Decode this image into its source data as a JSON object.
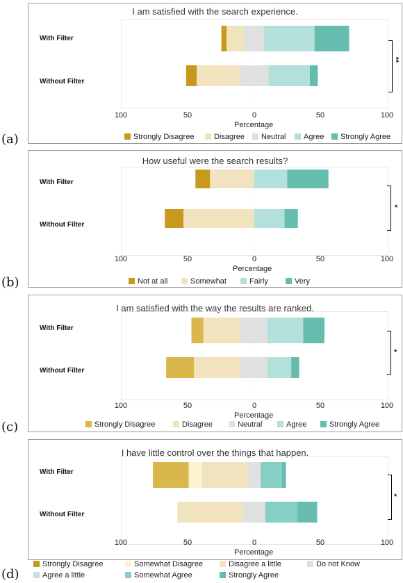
{
  "colors": {
    "strong_neg": "#c79a1d",
    "strong_neg_d": "#d9b74a",
    "neg": "#f1e3bd",
    "neutral": "#e0e0e0",
    "pos": "#b3e0da",
    "strong_pos": "#67bcb0",
    "somewhat_dis": "#fdf3d2",
    "agree_little": "#c7dfe8",
    "somewhat_agree": "#86cfc5"
  },
  "chart_data": [
    {
      "type": "bar",
      "label": "(a)",
      "title": "I am satisfied with the search experience.",
      "xlabel": "Percentage",
      "xlim": [
        -100,
        100
      ],
      "tick_labels": [
        "100",
        "50",
        "0",
        "50",
        "100"
      ],
      "categories": [
        "With Filter",
        "Without Filter"
      ],
      "significance": "**",
      "legend": [
        "Strongly Disagree",
        "Disagree",
        "Neutral",
        "Agree",
        "Strongly Agree"
      ],
      "series": [
        {
          "name": "Strongly Disagree",
          "values": [
            4,
            8
          ]
        },
        {
          "name": "Disagree",
          "values": [
            13,
            32
          ]
        },
        {
          "name": "Neutral",
          "values": [
            15,
            22
          ]
        },
        {
          "name": "Agree",
          "values": [
            38,
            31
          ]
        },
        {
          "name": "Strongly Agree",
          "values": [
            26,
            6
          ]
        }
      ]
    },
    {
      "type": "bar",
      "label": "(b)",
      "title": "How useful were the search results?",
      "xlabel": "Percentage",
      "xlim": [
        -100,
        100
      ],
      "tick_labels": [
        "100",
        "50",
        "0",
        "50",
        "100"
      ],
      "categories": [
        "With Filter",
        "Without Filter"
      ],
      "significance": "*",
      "legend": [
        "Not at all",
        "Somewhat",
        "Fairly",
        "Very"
      ],
      "series": [
        {
          "name": "Not at all",
          "values": [
            11,
            14
          ]
        },
        {
          "name": "Somewhat",
          "values": [
            33,
            53
          ]
        },
        {
          "name": "Fairly",
          "values": [
            25,
            23
          ]
        },
        {
          "name": "Very",
          "values": [
            31,
            10
          ]
        }
      ]
    },
    {
      "type": "bar",
      "label": "(c)",
      "title": "I am satisfied with the way the results are ranked.",
      "xlabel": "Percentage",
      "xlim": [
        -100,
        100
      ],
      "tick_labels": [
        "100",
        "50",
        "0",
        "50",
        "100"
      ],
      "categories": [
        "With Filter",
        "Without Filter"
      ],
      "significance": "*",
      "legend": [
        "Strongly Disagree",
        "Disagree",
        "Neutral",
        "Agree",
        "Strongly Agree"
      ],
      "series": [
        {
          "name": "Strongly Disagree",
          "values": [
            9,
            21
          ]
        },
        {
          "name": "Disagree",
          "values": [
            28,
            35
          ]
        },
        {
          "name": "Neutral",
          "values": [
            20,
            20
          ]
        },
        {
          "name": "Agree",
          "values": [
            27,
            18
          ]
        },
        {
          "name": "Strongly Agree",
          "values": [
            16,
            6
          ]
        }
      ]
    },
    {
      "type": "bar",
      "label": "(d)",
      "title": "I have little control over the things that happen.",
      "xlabel": "Percentage",
      "xlim": [
        -100,
        100
      ],
      "tick_labels": [
        "100",
        "50",
        "0",
        "50",
        "100"
      ],
      "categories": [
        "With Filter",
        "Without Filter"
      ],
      "significance": "*",
      "legend": [
        "Strongly Disagree",
        "Somewhat Disagree",
        "Disagree a little",
        "Do not Know",
        "Agree a little",
        "Somewhat Agree",
        "Strongly Agree"
      ],
      "series": [
        {
          "name": "Strongly Disagree",
          "values": [
            27,
            0
          ]
        },
        {
          "name": "Somewhat Disagree",
          "values": [
            10,
            0
          ]
        },
        {
          "name": "Disagree a little",
          "values": [
            34,
            49
          ]
        },
        {
          "name": "Do not Know",
          "values": [
            10,
            17
          ]
        },
        {
          "name": "Agree a little",
          "values": [
            0,
            0
          ]
        },
        {
          "name": "Somewhat Agree",
          "values": [
            16,
            24
          ]
        },
        {
          "name": "Strongly Agree",
          "values": [
            3,
            15
          ]
        }
      ]
    }
  ]
}
